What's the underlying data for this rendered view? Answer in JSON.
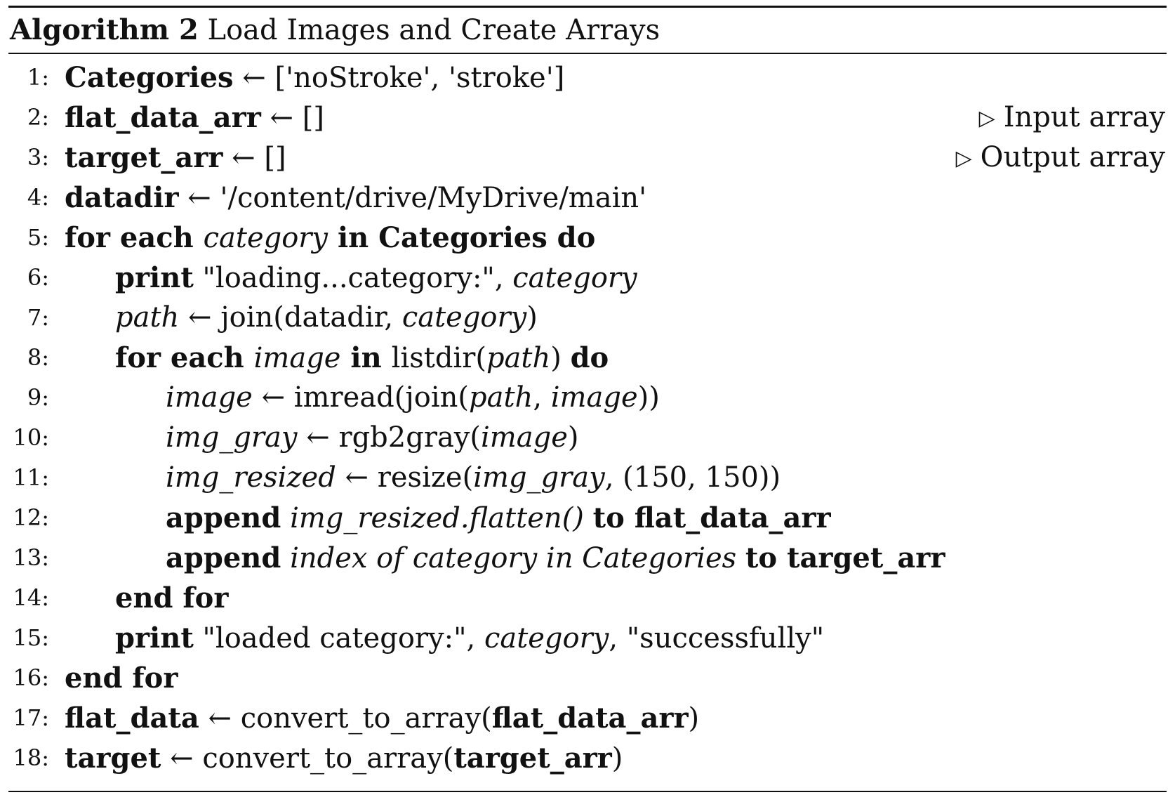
{
  "algorithm": {
    "label": "Algorithm 2",
    "title": "Load Images and Create Arrays",
    "lines": [
      {
        "no": "1:",
        "indent": 0,
        "parts": [
          {
            "t": "Categories",
            "s": "b"
          },
          {
            "t": " ← ['noStroke', 'stroke']",
            "s": "n"
          }
        ]
      },
      {
        "no": "2:",
        "indent": 0,
        "parts": [
          {
            "t": "flat_data_arr",
            "s": "b"
          },
          {
            "t": " ← []",
            "s": "n"
          }
        ],
        "comment": "Input array"
      },
      {
        "no": "3:",
        "indent": 0,
        "parts": [
          {
            "t": "target_arr",
            "s": "b"
          },
          {
            "t": " ← []",
            "s": "n"
          }
        ],
        "comment": "Output array"
      },
      {
        "no": "4:",
        "indent": 0,
        "parts": [
          {
            "t": "datadir",
            "s": "b"
          },
          {
            "t": " ← '/content/drive/MyDrive/main'",
            "s": "n"
          }
        ]
      },
      {
        "no": "5:",
        "indent": 0,
        "parts": [
          {
            "t": "for each ",
            "s": "b"
          },
          {
            "t": "category",
            "s": "i"
          },
          {
            "t": " in Categories do",
            "s": "b"
          }
        ]
      },
      {
        "no": "6:",
        "indent": 1,
        "parts": [
          {
            "t": "print",
            "s": "b"
          },
          {
            "t": " \"loading...category:\", ",
            "s": "n"
          },
          {
            "t": "category",
            "s": "i"
          }
        ]
      },
      {
        "no": "7:",
        "indent": 1,
        "parts": [
          {
            "t": "path",
            "s": "i"
          },
          {
            "t": " ← join(datadir, ",
            "s": "n"
          },
          {
            "t": "category",
            "s": "i"
          },
          {
            "t": ")",
            "s": "n"
          }
        ]
      },
      {
        "no": "8:",
        "indent": 1,
        "parts": [
          {
            "t": "for each ",
            "s": "b"
          },
          {
            "t": "image",
            "s": "i"
          },
          {
            "t": " in ",
            "s": "b"
          },
          {
            "t": "listdir(",
            "s": "n"
          },
          {
            "t": "path",
            "s": "i"
          },
          {
            "t": ") ",
            "s": "n"
          },
          {
            "t": "do",
            "s": "b"
          }
        ]
      },
      {
        "no": "9:",
        "indent": 2,
        "parts": [
          {
            "t": "image",
            "s": "i"
          },
          {
            "t": " ← imread(join(",
            "s": "n"
          },
          {
            "t": "path",
            "s": "i"
          },
          {
            "t": ", ",
            "s": "n"
          },
          {
            "t": "image",
            "s": "i"
          },
          {
            "t": "))",
            "s": "n"
          }
        ]
      },
      {
        "no": "10:",
        "indent": 2,
        "parts": [
          {
            "t": "img_gray",
            "s": "i"
          },
          {
            "t": " ← rgb2gray(",
            "s": "n"
          },
          {
            "t": "image",
            "s": "i"
          },
          {
            "t": ")",
            "s": "n"
          }
        ]
      },
      {
        "no": "11:",
        "indent": 2,
        "parts": [
          {
            "t": "img_resized",
            "s": "i"
          },
          {
            "t": " ← resize(",
            "s": "n"
          },
          {
            "t": "img_gray",
            "s": "i"
          },
          {
            "t": ", (150, 150))",
            "s": "n"
          }
        ]
      },
      {
        "no": "12:",
        "indent": 2,
        "parts": [
          {
            "t": "append",
            "s": "b"
          },
          {
            "t": " img_resized.flatten() ",
            "s": "i"
          },
          {
            "t": "to flat_data_arr",
            "s": "b"
          }
        ]
      },
      {
        "no": "13:",
        "indent": 2,
        "parts": [
          {
            "t": "append",
            "s": "b"
          },
          {
            "t": " index of category in Categories ",
            "s": "i"
          },
          {
            "t": "to target_arr",
            "s": "b"
          }
        ]
      },
      {
        "no": "14:",
        "indent": 1,
        "parts": [
          {
            "t": "end for",
            "s": "b"
          }
        ]
      },
      {
        "no": "15:",
        "indent": 1,
        "parts": [
          {
            "t": "print",
            "s": "b"
          },
          {
            "t": " \"loaded category:\", ",
            "s": "n"
          },
          {
            "t": "category",
            "s": "i"
          },
          {
            "t": ", \"successfully\"",
            "s": "n"
          }
        ]
      },
      {
        "no": "16:",
        "indent": 0,
        "parts": [
          {
            "t": "end for",
            "s": "b"
          }
        ]
      },
      {
        "no": "17:",
        "indent": 0,
        "parts": [
          {
            "t": "flat_data",
            "s": "b"
          },
          {
            "t": " ← convert_to_array(",
            "s": "n"
          },
          {
            "t": "flat_data_arr",
            "s": "b"
          },
          {
            "t": ")",
            "s": "n"
          }
        ]
      },
      {
        "no": "18:",
        "indent": 0,
        "parts": [
          {
            "t": "target",
            "s": "b"
          },
          {
            "t": " ← convert_to_array(",
            "s": "n"
          },
          {
            "t": "target_arr",
            "s": "b"
          },
          {
            "t": ")",
            "s": "n"
          }
        ]
      }
    ]
  }
}
